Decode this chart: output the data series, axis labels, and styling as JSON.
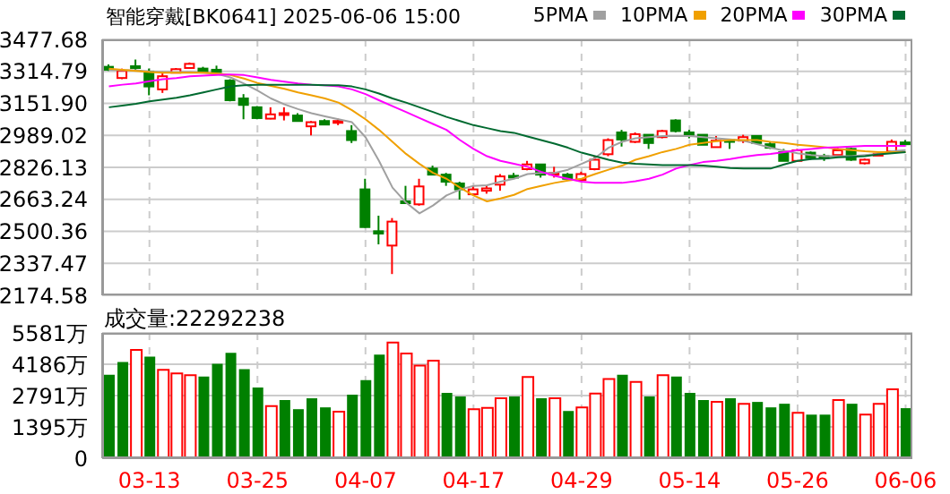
{
  "chart_data": [
    {
      "type": "candlestick",
      "title": "智能穿戴[BK0641]",
      "subtitle": "2025-06-06 15:00",
      "categories": [
        null,
        null,
        null,
        null,
        null,
        null,
        null,
        null,
        null,
        null,
        null,
        null,
        null,
        null,
        null,
        null,
        null,
        null,
        null,
        null,
        null,
        null,
        null,
        null,
        null,
        null,
        null,
        null,
        null,
        null,
        null,
        null,
        null,
        null,
        null,
        null,
        null,
        null,
        null,
        null,
        null,
        null,
        null,
        null,
        null,
        null,
        null,
        null,
        null,
        null,
        null,
        null,
        null,
        null,
        null,
        null,
        null,
        null,
        null,
        null
      ],
      "ohlc": [
        [
          3338,
          3350,
          3317,
          3323
        ],
        [
          3281,
          3329,
          3275,
          3317
        ],
        [
          3341,
          3375,
          3314,
          3335
        ],
        [
          3314,
          3329,
          3193,
          3238
        ],
        [
          3223,
          3314,
          3205,
          3290
        ],
        [
          3308,
          3332,
          3305,
          3326
        ],
        [
          3332,
          3360,
          3329,
          3353
        ],
        [
          3329,
          3338,
          3311,
          3314
        ],
        [
          3323,
          3344,
          3302,
          3311
        ],
        [
          3268,
          3275,
          3162,
          3168
        ],
        [
          3177,
          3199,
          3071,
          3144
        ],
        [
          3132,
          3138,
          3071,
          3077
        ],
        [
          3074,
          3132,
          3071,
          3096
        ],
        [
          3096,
          3132,
          3065,
          3102
        ],
        [
          3090,
          3102,
          3059,
          3062
        ],
        [
          3035,
          3062,
          2989,
          3056
        ],
        [
          3062,
          3071,
          3044,
          3044
        ],
        [
          3053,
          3074,
          3041,
          3062
        ],
        [
          3011,
          3041,
          2950,
          2965
        ],
        [
          2714,
          2768,
          2519,
          2522
        ],
        [
          2501,
          2580,
          2434,
          2489
        ],
        [
          2428,
          2568,
          2283,
          2550
        ],
        [
          2653,
          2732,
          2644,
          2647
        ],
        [
          2638,
          2768,
          2631,
          2729
        ],
        [
          2820,
          2835,
          2789,
          2789
        ],
        [
          2789,
          2798,
          2732,
          2753
        ],
        [
          2744,
          2753,
          2662,
          2714
        ],
        [
          2689,
          2732,
          2683,
          2714
        ],
        [
          2707,
          2732,
          2692,
          2719
        ],
        [
          2738,
          2792,
          2707,
          2780
        ],
        [
          2783,
          2798,
          2774,
          2780
        ],
        [
          2817,
          2859,
          2811,
          2841
        ],
        [
          2841,
          2841,
          2774,
          2789
        ],
        [
          2789,
          2829,
          2774,
          2798
        ],
        [
          2789,
          2798,
          2768,
          2768
        ],
        [
          2762,
          2804,
          2753,
          2792
        ],
        [
          2817,
          2883,
          2811,
          2865
        ],
        [
          2893,
          2974,
          2883,
          2965
        ],
        [
          3004,
          3017,
          2932,
          2968
        ],
        [
          2956,
          3004,
          2950,
          2995
        ],
        [
          2992,
          2992,
          2920,
          2950
        ],
        [
          2980,
          3017,
          2974,
          3011
        ],
        [
          3065,
          3071,
          3004,
          3011
        ],
        [
          3004,
          3017,
          2974,
          2992
        ],
        [
          2992,
          2992,
          2941,
          2941
        ],
        [
          2929,
          2986,
          2926,
          2962
        ],
        [
          2965,
          2968,
          2920,
          2959
        ],
        [
          2962,
          2992,
          2950,
          2980
        ],
        [
          2986,
          2986,
          2950,
          2950
        ],
        [
          2944,
          2956,
          2920,
          2926
        ],
        [
          2904,
          2920,
          2859,
          2859
        ],
        [
          2859,
          2920,
          2859,
          2913
        ],
        [
          2901,
          2907,
          2865,
          2874
        ],
        [
          2883,
          2895,
          2859,
          2880
        ],
        [
          2889,
          2926,
          2883,
          2913
        ],
        [
          2920,
          2926,
          2859,
          2865
        ],
        [
          2847,
          2871,
          2841,
          2865
        ],
        [
          2892,
          2898,
          2886,
          2895
        ],
        [
          2907,
          2968,
          2901,
          2956
        ],
        [
          2953,
          2965,
          2941,
          2947
        ]
      ],
      "colors": [
        "#008000",
        "#ff0000",
        "#008000",
        "#008000",
        "#ff0000",
        "#ff0000",
        "#ff0000",
        "#008000",
        "#008000",
        "#008000",
        "#008000",
        "#008000",
        "#ff0000",
        "#ff0000",
        "#008000",
        "#ff0000",
        "#008000",
        "#ff0000",
        "#008000",
        "#008000",
        "#008000",
        "#ff0000",
        "#008000",
        "#ff0000",
        "#008000",
        "#008000",
        "#008000",
        "#ff0000",
        "#ff0000",
        "#ff0000",
        "#008000",
        "#ff0000",
        "#008000",
        "#ff0000",
        "#008000",
        "#ff0000",
        "#ff0000",
        "#ff0000",
        "#008000",
        "#ff0000",
        "#008000",
        "#ff0000",
        "#008000",
        "#008000",
        "#008000",
        "#ff0000",
        "#008000",
        "#ff0000",
        "#008000",
        "#008000",
        "#008000",
        "#ff0000",
        "#008000",
        "#008000",
        "#ff0000",
        "#008000",
        "#ff0000",
        "#ff0000",
        "#ff0000",
        "#008000"
      ],
      "series": [
        {
          "type": "line",
          "name": "5PMA",
          "color": "#a0a0a0",
          "values": [
            3323,
            3320,
            3320,
            3314,
            3311,
            3311,
            3311,
            3308,
            3302,
            3284,
            3253,
            3217,
            3177,
            3147,
            3123,
            3102,
            3086,
            3071,
            3056,
            2980,
            2859,
            2723,
            2647,
            2592,
            2632,
            2683,
            2713,
            2732,
            2735,
            2753,
            2768,
            2792,
            2798,
            2798,
            2814,
            2844,
            2874,
            2926,
            2956,
            2974,
            2980,
            2986,
            2986,
            2986,
            2980,
            2974,
            2968,
            2962,
            2944,
            2926,
            2911,
            2898,
            2889,
            2883,
            2883,
            2883,
            2889,
            2895,
            2908,
            2914
          ]
        },
        {
          "type": "line",
          "name": "10PMA",
          "color": "#f0a000",
          "values": [
            3329,
            3323,
            3317,
            3311,
            3308,
            3308,
            3308,
            3308,
            3305,
            3296,
            3278,
            3256,
            3241,
            3226,
            3208,
            3193,
            3177,
            3156,
            3117,
            3071,
            3017,
            2956,
            2895,
            2844,
            2798,
            2768,
            2723,
            2683,
            2653,
            2668,
            2686,
            2716,
            2732,
            2747,
            2759,
            2768,
            2792,
            2814,
            2835,
            2865,
            2883,
            2904,
            2920,
            2941,
            2950,
            2959,
            2965,
            2965,
            2965,
            2956,
            2950,
            2941,
            2935,
            2929,
            2920,
            2914,
            2908,
            2904,
            2904,
            2904
          ]
        },
        {
          "type": "line",
          "name": "20PMA",
          "color": "#ff00ff",
          "values": [
            3238,
            3247,
            3253,
            3265,
            3275,
            3281,
            3290,
            3293,
            3296,
            3299,
            3296,
            3284,
            3272,
            3262,
            3253,
            3247,
            3244,
            3238,
            3223,
            3199,
            3168,
            3138,
            3108,
            3077,
            3047,
            3017,
            2965,
            2920,
            2883,
            2859,
            2844,
            2829,
            2804,
            2783,
            2768,
            2753,
            2747,
            2747,
            2747,
            2756,
            2768,
            2789,
            2820,
            2838,
            2853,
            2859,
            2868,
            2880,
            2889,
            2895,
            2904,
            2914,
            2920,
            2926,
            2929,
            2932,
            2935,
            2935,
            2935,
            2935
          ]
        },
        {
          "type": "line",
          "name": "30PMA",
          "color": "#006a30",
          "values": [
            3132,
            3141,
            3150,
            3162,
            3171,
            3180,
            3193,
            3208,
            3223,
            3238,
            3244,
            3247,
            3247,
            3247,
            3247,
            3247,
            3244,
            3244,
            3238,
            3223,
            3202,
            3177,
            3156,
            3132,
            3108,
            3083,
            3062,
            3041,
            3026,
            3011,
            3002,
            2983,
            2965,
            2947,
            2926,
            2901,
            2883,
            2865,
            2850,
            2844,
            2841,
            2838,
            2838,
            2838,
            2835,
            2829,
            2823,
            2820,
            2820,
            2820,
            2841,
            2859,
            2868,
            2871,
            2877,
            2880,
            2883,
            2892,
            2898,
            2904
          ]
        }
      ],
      "ylim": [
        2174.58,
        3477.68
      ],
      "yticks": [
        3477.68,
        3314.79,
        {
          "value": 3151.9,
          "label": "3151.90"
        },
        2989.02,
        2826.13,
        2663.24,
        2500.36,
        2337.47,
        2174.58
      ],
      "tick_labels": "y",
      "grid": true,
      "legend": "top right"
    },
    {
      "type": "bar",
      "title": "成交量:22292238",
      "categories": [
        null,
        null,
        null,
        "03-13",
        null,
        null,
        null,
        null,
        null,
        null,
        null,
        "03-25",
        null,
        null,
        null,
        null,
        null,
        null,
        null,
        "04-07",
        null,
        null,
        null,
        null,
        null,
        null,
        null,
        "04-17",
        null,
        null,
        null,
        null,
        null,
        null,
        null,
        "04-29",
        null,
        null,
        null,
        null,
        null,
        null,
        null,
        "05-14",
        null,
        null,
        null,
        null,
        null,
        null,
        null,
        "05-26",
        null,
        null,
        null,
        null,
        null,
        null,
        null,
        "06-06"
      ],
      "values": [
        3720,
        4287,
        4826,
        4529,
        3936,
        3774,
        3694,
        3640,
        4206,
        4691,
        3963,
        3154,
        2319,
        2588,
        2184,
        2669,
        2265,
        2076,
        2831,
        3478,
        4610,
        5149,
        4664,
        4125,
        4341,
        2912,
        2750,
        2184,
        2238,
        2669,
        2750,
        3613,
        2669,
        2669,
        2103,
        2265,
        2885,
        3532,
        3720,
        3397,
        2750,
        3694,
        3640,
        2912,
        2588,
        2507,
        2669,
        2426,
        2507,
        2265,
        2426,
        2022,
        1941,
        1941,
        2588,
        2426,
        1941,
        2426,
        3073,
        2229
      ],
      "colors": [
        "#008000",
        "#008000",
        "#ff0000",
        "#008000",
        "#ff0000",
        "#ff0000",
        "#ff0000",
        "#008000",
        "#008000",
        "#008000",
        "#008000",
        "#008000",
        "#ff0000",
        "#008000",
        "#008000",
        "#008000",
        "#008000",
        "#ff0000",
        "#008000",
        "#008000",
        "#008000",
        "#ff0000",
        "#ff0000",
        "#ff0000",
        "#ff0000",
        "#008000",
        "#008000",
        "#ff0000",
        "#ff0000",
        "#ff0000",
        "#008000",
        "#ff0000",
        "#008000",
        "#ff0000",
        "#008000",
        "#ff0000",
        "#ff0000",
        "#ff0000",
        "#008000",
        "#ff0000",
        "#008000",
        "#ff0000",
        "#008000",
        "#008000",
        "#008000",
        "#ff0000",
        "#008000",
        "#ff0000",
        "#008000",
        "#008000",
        "#008000",
        "#ff0000",
        "#008000",
        "#008000",
        "#ff0000",
        "#008000",
        "#ff0000",
        "#ff0000",
        "#ff0000",
        "#008000"
      ],
      "ylim": [
        0,
        5581
      ],
      "yticks": [
        {
          "value": 0,
          "label": "0"
        },
        {
          "value": 1395,
          "label": "1395万"
        },
        {
          "value": 2791,
          "label": "2791万"
        },
        {
          "value": 4186,
          "label": "4186万"
        },
        {
          "value": 5581,
          "label": "5581万"
        }
      ],
      "grid": true
    }
  ]
}
